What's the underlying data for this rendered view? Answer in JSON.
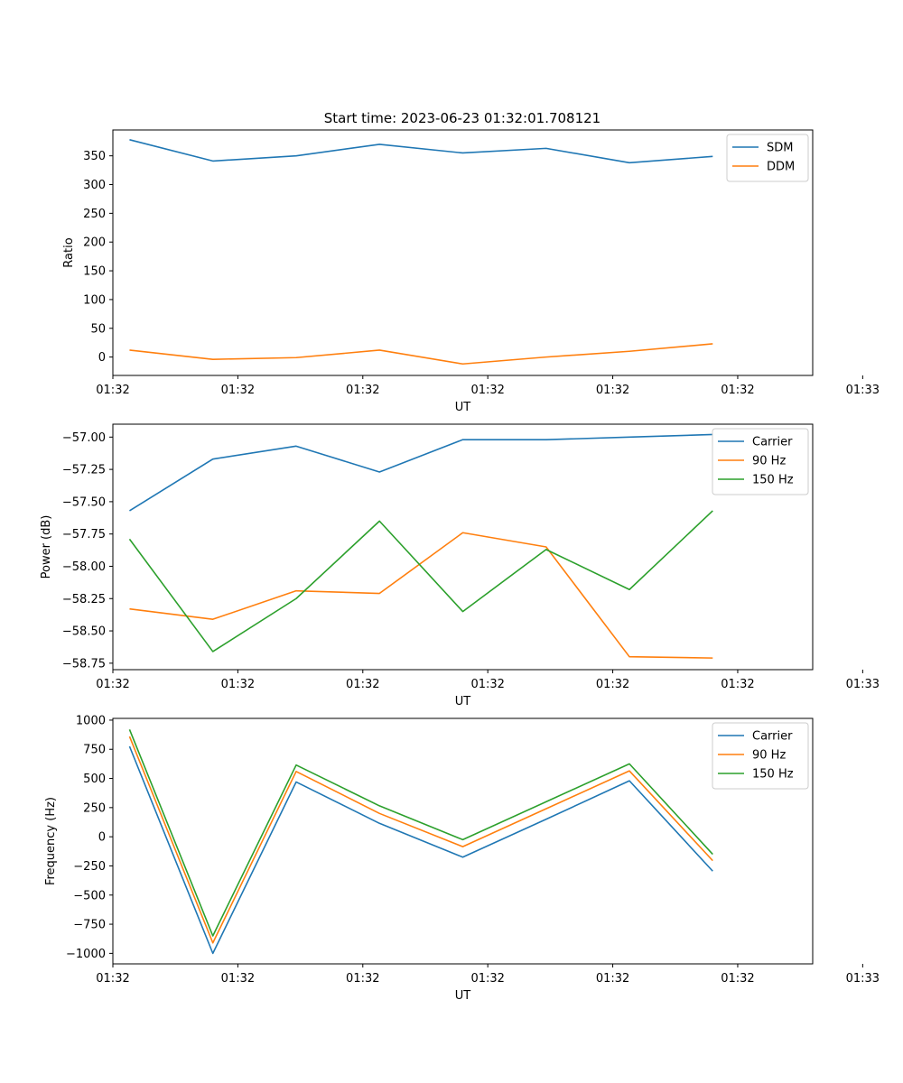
{
  "figure": {
    "title": "Start time: 2023-06-23 01:32:01.708121"
  },
  "chart_data": [
    {
      "type": "line",
      "ylabel": "Ratio",
      "xlabel": "UT",
      "x": [
        1,
        2,
        3,
        4,
        5,
        6,
        7,
        8
      ],
      "xlim": [
        0.8,
        9.2
      ],
      "ylim": [
        -32,
        395
      ],
      "xticks": [
        0.8,
        2.3,
        3.8,
        5.3,
        6.8,
        8.3,
        9.8
      ],
      "xtick_labels": [
        "01:32",
        "01:32",
        "01:32",
        "01:32",
        "01:32",
        "01:32",
        "01:33"
      ],
      "yticks": [
        0,
        50,
        100,
        150,
        200,
        250,
        300,
        350
      ],
      "ytick_labels": [
        "0",
        "50",
        "100",
        "150",
        "200",
        "250",
        "300",
        "350"
      ],
      "legend_position": "top-right",
      "series": [
        {
          "name": "SDM",
          "color": "#1f77b4",
          "values": [
            378,
            341,
            350,
            370,
            355,
            363,
            338,
            349
          ]
        },
        {
          "name": "DDM",
          "color": "#ff7f0e",
          "values": [
            12,
            -4,
            -1,
            12,
            -12,
            0,
            10,
            23
          ]
        }
      ]
    },
    {
      "type": "line",
      "ylabel": "Power (dB)",
      "xlabel": "UT",
      "x": [
        1,
        2,
        3,
        4,
        5,
        6,
        7,
        8
      ],
      "xlim": [
        0.8,
        9.2
      ],
      "ylim": [
        -58.8,
        -56.9
      ],
      "xticks": [
        0.8,
        2.3,
        3.8,
        5.3,
        6.8,
        8.3,
        9.8
      ],
      "xtick_labels": [
        "01:32",
        "01:32",
        "01:32",
        "01:32",
        "01:32",
        "01:32",
        "01:33"
      ],
      "yticks": [
        -58.75,
        -58.5,
        -58.25,
        -58.0,
        -57.75,
        -57.5,
        -57.25,
        -57.0
      ],
      "ytick_labels": [
        "−58.75",
        "−58.50",
        "−58.25",
        "−58.00",
        "−57.75",
        "−57.50",
        "−57.25",
        "−57.00"
      ],
      "legend_position": "top-right",
      "series": [
        {
          "name": "Carrier",
          "color": "#1f77b4",
          "values": [
            -57.57,
            -57.17,
            -57.07,
            -57.27,
            -57.02,
            -57.02,
            -57.0,
            -56.98
          ]
        },
        {
          "name": "90 Hz",
          "color": "#ff7f0e",
          "values": [
            -58.33,
            -58.41,
            -58.19,
            -58.21,
            -57.74,
            -57.85,
            -58.7,
            -58.71
          ]
        },
        {
          "name": "150 Hz",
          "color": "#2ca02c",
          "values": [
            -57.79,
            -58.66,
            -58.25,
            -57.65,
            -58.35,
            -57.87,
            -58.18,
            -57.57
          ]
        }
      ]
    },
    {
      "type": "line",
      "ylabel": "Frequency (Hz)",
      "xlabel": "UT",
      "x": [
        1,
        2,
        3,
        4,
        5,
        6,
        7,
        8
      ],
      "xlim": [
        0.8,
        9.2
      ],
      "ylim": [
        -1090,
        1015
      ],
      "xticks": [
        0.8,
        2.3,
        3.8,
        5.3,
        6.8,
        8.3,
        9.8
      ],
      "xtick_labels": [
        "01:32",
        "01:32",
        "01:32",
        "01:32",
        "01:32",
        "01:32",
        "01:33"
      ],
      "yticks": [
        -1000,
        -750,
        -500,
        -250,
        0,
        250,
        500,
        750,
        1000
      ],
      "ytick_labels": [
        "−1000",
        "−750",
        "−500",
        "−250",
        "0",
        "250",
        "500",
        "750",
        "1000"
      ],
      "legend_position": "top-right",
      "series": [
        {
          "name": "Carrier",
          "color": "#1f77b4",
          "values": [
            775,
            -1000,
            470,
            115,
            -175,
            150,
            480,
            -295
          ]
        },
        {
          "name": "90 Hz",
          "color": "#ff7f0e",
          "values": [
            860,
            -910,
            560,
            200,
            -85,
            240,
            565,
            -205
          ]
        },
        {
          "name": "150 Hz",
          "color": "#2ca02c",
          "values": [
            920,
            -850,
            615,
            265,
            -25,
            300,
            625,
            -150
          ]
        }
      ]
    }
  ]
}
